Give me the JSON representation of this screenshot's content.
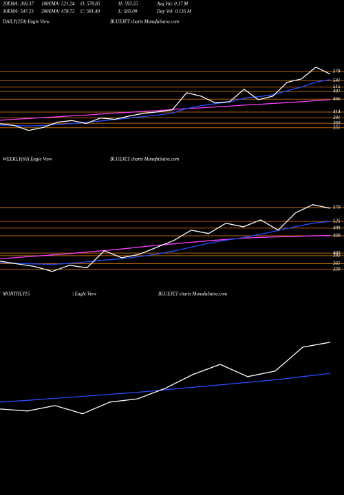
{
  "header": [
    [
      "20EMA: 369.37",
      "100EMA: 521.24",
      "O: 578.85",
      "H: 593.55",
      "Avg Vol: 0.17 M"
    ],
    [
      "30EMA: 547.23",
      "200EMA: 478.72",
      "C: 581.40",
      "L: 565.00",
      "Day Vol: 0.135 M"
    ]
  ],
  "chart_data": [
    {
      "type": "line",
      "title": "DAILY(250) Eagle View",
      "subtitle": "BLUEJET charts MunafaSutra.com",
      "ylim": [
        270,
        755
      ],
      "yticks": [
        351,
        369,
        391,
        414,
        466,
        497,
        515,
        541,
        578
      ],
      "tick_color": "#b8650c",
      "series": [
        {
          "color": "#ff40ff",
          "values": [
            381,
            385,
            388,
            392,
            395,
            399,
            402,
            406,
            410,
            413,
            417,
            420,
            424,
            428,
            431,
            435,
            438,
            442,
            445,
            449,
            452,
            456,
            460,
            464
          ]
        },
        {
          "color": "#2a4cff",
          "values": [
            362,
            360,
            358,
            360,
            364,
            368,
            372,
            378,
            384,
            390,
            396,
            402,
            410,
            428,
            440,
            448,
            455,
            470,
            476,
            484,
            500,
            515,
            535,
            545
          ]
        },
        {
          "color": "#ffffff",
          "values": [
            367,
            360,
            340,
            352,
            373,
            380,
            368,
            390,
            385,
            398,
            409,
            415,
            423,
            492,
            478,
            451,
            456,
            506,
            464,
            478,
            534,
            548,
            595,
            567
          ]
        }
      ]
    },
    {
      "type": "line",
      "title": "WEEKLY(69) Eagle View",
      "subtitle": "BLUEJET charts MunafaSutra.com",
      "ylim": [
        317,
        744
      ],
      "yticks": [
        339,
        361,
        392,
        402,
        469,
        499,
        525,
        579
      ],
      "tick_color": "#b8650c",
      "series": [
        {
          "color": "#ff40ff",
          "values": [
            380,
            385,
            390,
            395,
            400,
            406,
            412,
            418,
            425,
            432,
            438,
            444,
            450,
            455,
            460,
            463,
            465,
            467,
            469,
            470
          ]
        },
        {
          "color": "#2a4cff",
          "values": [
            365,
            362,
            360,
            358,
            362,
            368,
            375,
            380,
            388,
            398,
            410,
            425,
            440,
            452,
            462,
            475,
            490,
            505,
            518,
            525
          ]
        },
        {
          "color": "#ffffff",
          "values": [
            371,
            360,
            350,
            331,
            355,
            345,
            411,
            384,
            397,
            424,
            451,
            491,
            478,
            518,
            504,
            531,
            491,
            558,
            590,
            576
          ]
        }
      ]
    },
    {
      "type": "line",
      "title": "MONTHLY15",
      "annotations": [
        "| Eagle View"
      ],
      "subtitle": "BLUEJET charts MunafaSutra.com",
      "ylim": [
        0,
        800
      ],
      "yticks": [],
      "tick_color": "#b8650c",
      "series": [
        {
          "color": "#2a4cff",
          "values": [
            373,
            380,
            388,
            396,
            404,
            412,
            422,
            432,
            442,
            452,
            462,
            475,
            488
          ]
        },
        {
          "color": "#ffffff",
          "values": [
            345,
            337,
            359,
            326,
            373,
            386,
            428,
            483,
            524,
            475,
            497,
            593,
            613
          ]
        }
      ]
    }
  ]
}
